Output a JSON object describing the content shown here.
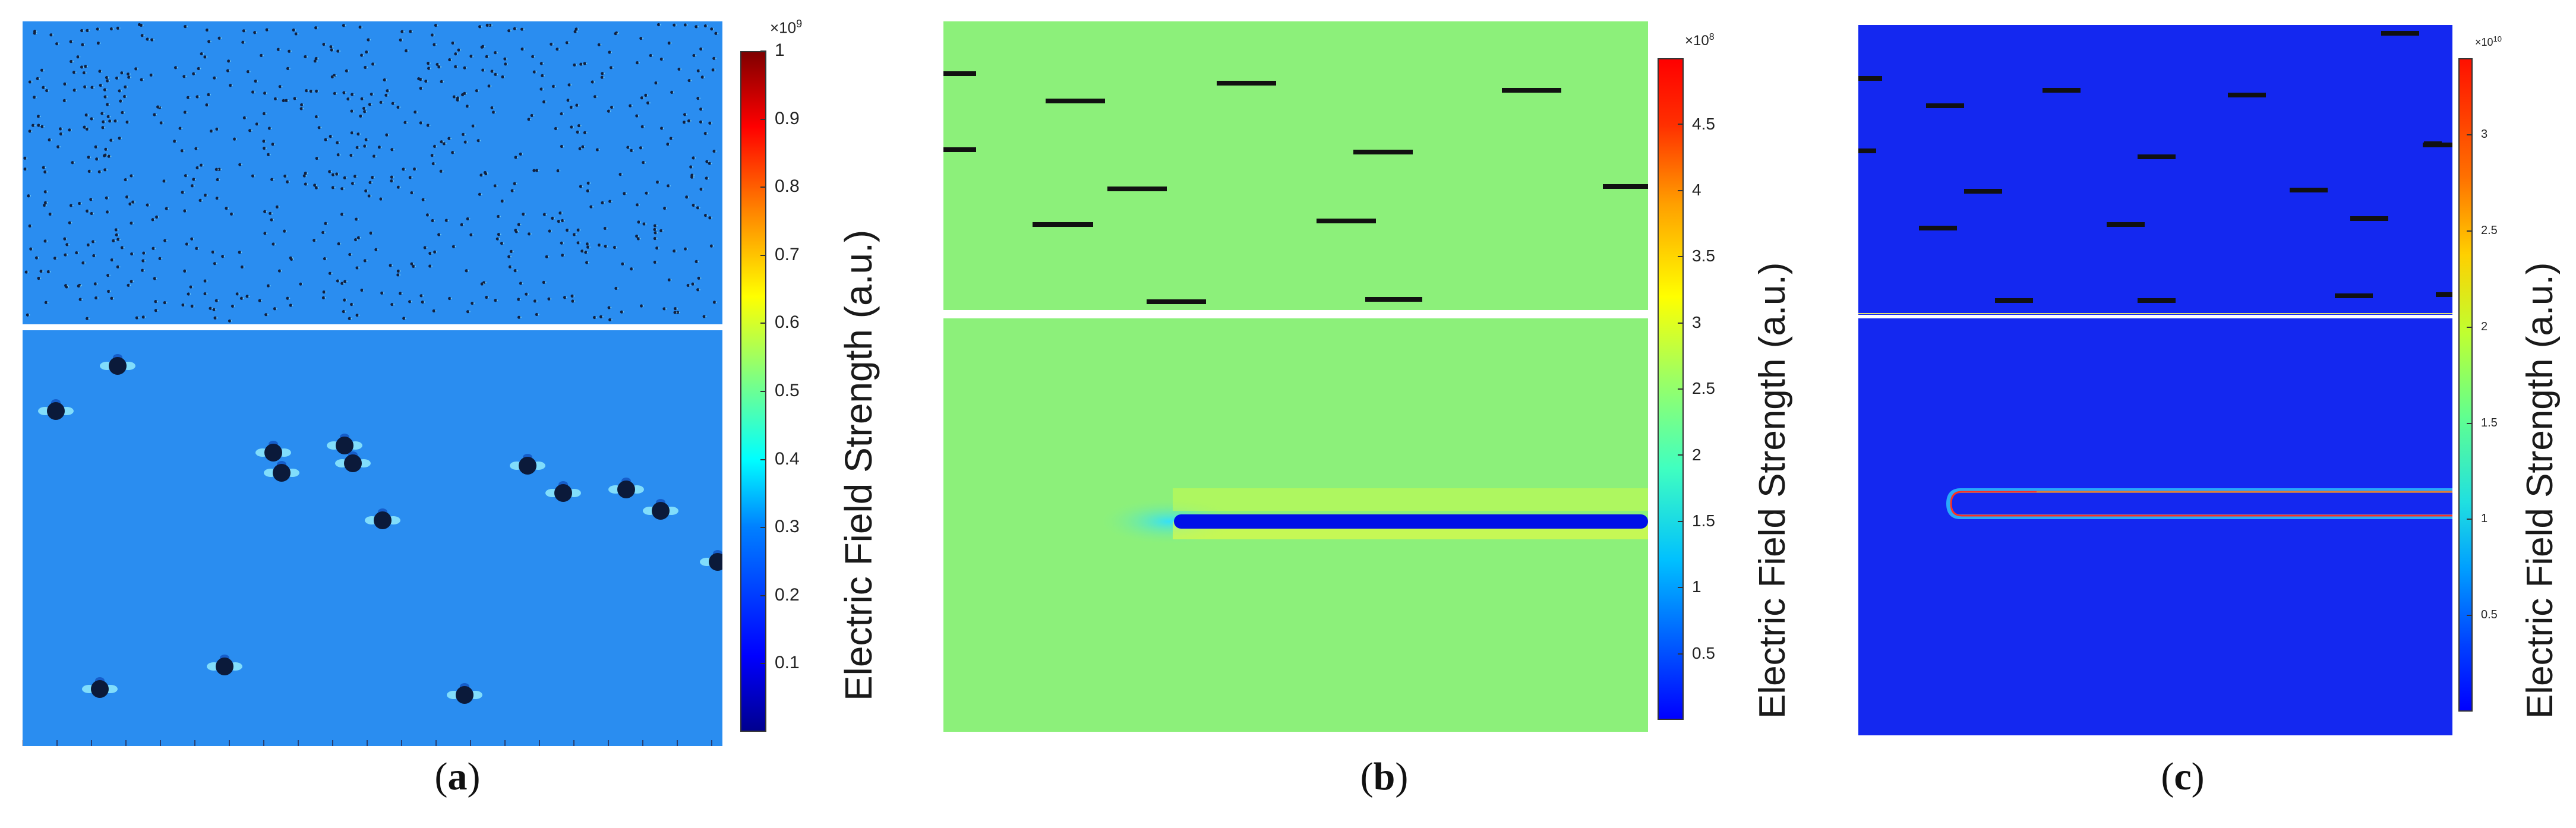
{
  "figure": {
    "panels": [
      {
        "caption_letter": "a",
        "colorbar": {
          "label": "Electric Field Strength (a.u.)",
          "multiplier_base": "×10",
          "multiplier_exp": "9",
          "tick_labels": [
            "1",
            "0.9",
            "0.8",
            "0.7",
            "0.6",
            "0.5",
            "0.4",
            "0.3",
            "0.2",
            "0.1"
          ]
        }
      },
      {
        "caption_letter": "b",
        "colorbar": {
          "label": "Electric Field Strength (a.u.)",
          "multiplier_base": "×10",
          "multiplier_exp": "8",
          "tick_labels": [
            "4.5",
            "4",
            "3.5",
            "3",
            "2.5",
            "2",
            "1.5",
            "1",
            "0.5"
          ]
        }
      },
      {
        "caption_letter": "c",
        "colorbar": {
          "label": "Electric Field Strength (a.u.)",
          "multiplier_base": "×10",
          "multiplier_exp": "10",
          "tick_labels": [
            "3",
            "2.5",
            "2",
            "1.5",
            "1",
            "0.5"
          ]
        }
      }
    ]
  },
  "chart_data": [
    {
      "type": "heatmap",
      "colormap": "jet",
      "colorbar_range": [
        0,
        1.0
      ],
      "colorbar_ticks": [
        1,
        0.9,
        0.8,
        0.7,
        0.6,
        0.5,
        0.4,
        0.3,
        0.2,
        0.1
      ],
      "colorbar_multiplier": "1e9",
      "background_field_level": 0.3,
      "subplots": [
        "many small particles (top)",
        "sparse particles with field concentration (bottom)"
      ]
    },
    {
      "type": "heatmap",
      "colormap": "jet",
      "colorbar_range": [
        0,
        5.0
      ],
      "colorbar_ticks": [
        4.5,
        4,
        3.5,
        3,
        2.5,
        2,
        1.5,
        1,
        0.5
      ],
      "colorbar_multiplier": "1e8",
      "background_field_level": 2.6,
      "subplots": [
        "dispersed horizontal fillers (top)",
        "single filler with tip field enhancement (bottom)"
      ]
    },
    {
      "type": "heatmap",
      "colormap": "jet",
      "colorbar_range": [
        0,
        3.4
      ],
      "colorbar_ticks": [
        3,
        2.5,
        2,
        1.5,
        1,
        0.5
      ],
      "colorbar_multiplier": "1e10",
      "background_field_level": 0.1,
      "subplots": [
        "dispersed horizontal fillers (top)",
        "single coated filler with edge field enhancement (bottom)"
      ]
    }
  ]
}
